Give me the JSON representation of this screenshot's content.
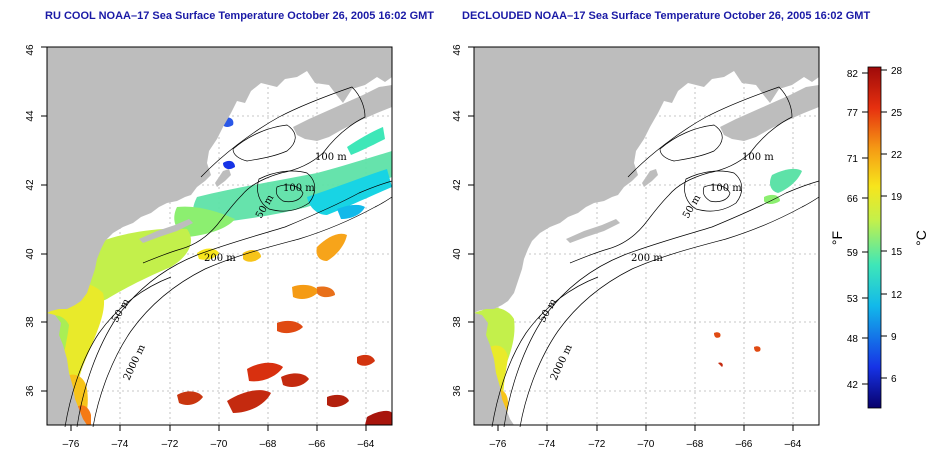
{
  "panels": [
    {
      "id": "left",
      "title": "RU COOL NOAA–17 Sea Surface Temperature October 26, 2005 16:02 GMT",
      "contour_labels": [
        "100 m",
        "100 m",
        "50 m",
        "200 m",
        "50 m",
        "2000 m"
      ]
    },
    {
      "id": "right",
      "title": "DECLOUDED NOAA–17 Sea Surface Temperature October 26, 2005 16:02 GMT",
      "contour_labels": [
        "100 m",
        "100 m",
        "50 m",
        "200 m",
        "50 m",
        "2000 m"
      ]
    }
  ],
  "axes": {
    "lon_ticks": [
      "–76",
      "–74",
      "–72",
      "–70",
      "–68",
      "–66",
      "–64"
    ],
    "lat_ticks": [
      "36",
      "38",
      "40",
      "42",
      "44",
      "46"
    ],
    "lon_range": [
      -77.2,
      -63.0
    ],
    "lat_range": [
      35.0,
      46.0
    ]
  },
  "colorbar": {
    "fahrenheit_ticks": [
      "82",
      "77",
      "71",
      "66",
      "59",
      "53",
      "48",
      "42"
    ],
    "celsius_ticks": [
      "28",
      "25",
      "22",
      "19",
      "15",
      "12",
      "9",
      "6"
    ],
    "fahrenheit_label": "°F",
    "celsius_label": "°C",
    "colors": [
      "#08006b",
      "#1633e6",
      "#12b9ea",
      "#3ee7b8",
      "#c3f04b",
      "#f7e51c",
      "#f59b14",
      "#e6300f",
      "#9e0a0a"
    ]
  },
  "colors": {
    "land": "#bdbdbd",
    "ocean_no_data": "#ffffff",
    "title": "#1a1aa6",
    "grid": "#b5b5b5"
  }
}
